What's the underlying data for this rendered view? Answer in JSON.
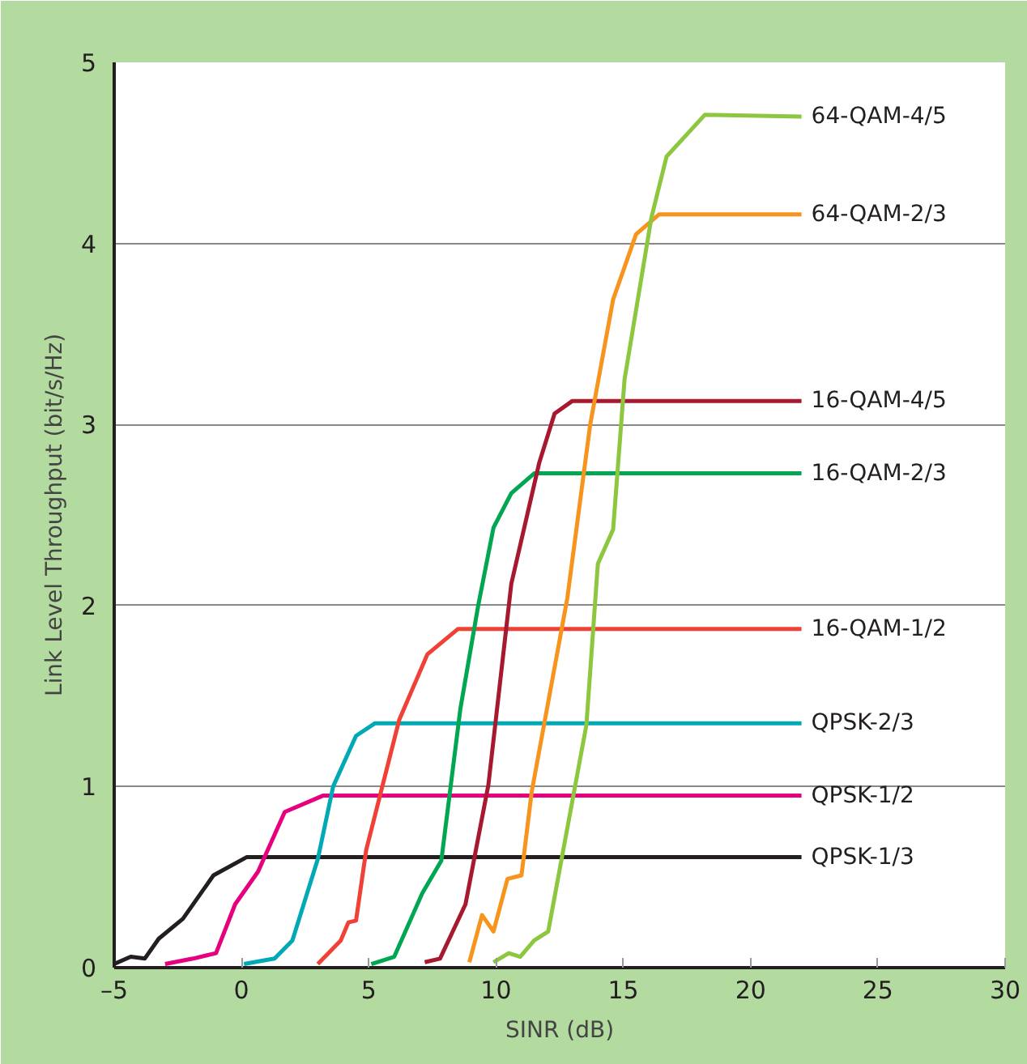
{
  "chart_data": {
    "type": "line",
    "xlabel": "SINR (dB)",
    "ylabel": "Link Level Throughput (bit/s/Hz)",
    "xlim": [
      -5,
      30
    ],
    "ylim": [
      0,
      5
    ],
    "xticks": [
      {
        "value": -5,
        "label": "–5"
      },
      0,
      5,
      10,
      15,
      20,
      25,
      30
    ],
    "yticks": [
      0,
      1,
      2,
      3,
      4,
      5
    ],
    "grid": "y",
    "legend": false,
    "series": [
      {
        "name": "QPSK-1/3",
        "color": "#231f20",
        "x": [
          -5,
          -4.35,
          -3.8,
          -3.25,
          -2.3,
          -1.1,
          0.2,
          22
        ],
        "values": [
          0.02,
          0.06,
          0.05,
          0.16,
          0.27,
          0.51,
          0.61,
          0.61
        ]
      },
      {
        "name": "QPSK-1/2",
        "color": "#e6007e",
        "x": [
          -3,
          -1.9,
          -1,
          -0.25,
          0.65,
          1.7,
          3.2,
          22
        ],
        "values": [
          0.02,
          0.05,
          0.08,
          0.35,
          0.53,
          0.86,
          0.95,
          0.95
        ]
      },
      {
        "name": "QPSK-2/3",
        "color": "#00a9b5",
        "x": [
          0.1,
          1.3,
          2,
          3,
          3.6,
          4.5,
          5.25,
          22
        ],
        "values": [
          0.02,
          0.05,
          0.15,
          0.6,
          1.0,
          1.28,
          1.35,
          1.35
        ]
      },
      {
        "name": "16-QAM-1/2",
        "color": "#ef4136",
        "x": [
          3,
          3.9,
          4.2,
          4.5,
          4.9,
          6.2,
          7.3,
          8.5,
          22
        ],
        "values": [
          0.02,
          0.15,
          0.25,
          0.26,
          0.65,
          1.37,
          1.73,
          1.87,
          1.87
        ]
      },
      {
        "name": "16-QAM-2/3",
        "color": "#00a651",
        "x": [
          5.1,
          6,
          7.1,
          7.85,
          8.6,
          9.3,
          9.9,
          10.6,
          11.5,
          22
        ],
        "values": [
          0.02,
          0.06,
          0.41,
          0.59,
          1.43,
          2.0,
          2.43,
          2.62,
          2.73,
          2.73
        ]
      },
      {
        "name": "16-QAM-4/5",
        "color": "#a6192e",
        "x": [
          7.2,
          7.8,
          8.8,
          9.7,
          10.6,
          11.7,
          12.3,
          13,
          22
        ],
        "values": [
          0.03,
          0.05,
          0.35,
          1.01,
          2.12,
          2.79,
          3.06,
          3.13,
          3.13
        ]
      },
      {
        "name": "64-QAM-2/3",
        "color": "#f7941d",
        "x": [
          8.95,
          9.45,
          9.9,
          10.45,
          11,
          11.4,
          12.8,
          13.7,
          14.6,
          15.5,
          16.4,
          22
        ],
        "values": [
          0.03,
          0.29,
          0.2,
          0.49,
          0.51,
          0.97,
          2.04,
          3.0,
          3.69,
          4.05,
          4.16,
          4.16
        ]
      },
      {
        "name": "64-QAM-4/5",
        "color": "#8dc63f",
        "x": [
          9.9,
          10.5,
          10.95,
          11.5,
          12.05,
          13.55,
          14,
          14.6,
          15.05,
          16.1,
          16.7,
          18.2,
          22
        ],
        "values": [
          0.03,
          0.08,
          0.06,
          0.15,
          0.2,
          1.34,
          2.23,
          2.42,
          3.25,
          4.14,
          4.48,
          4.71,
          4.7
        ]
      }
    ]
  }
}
